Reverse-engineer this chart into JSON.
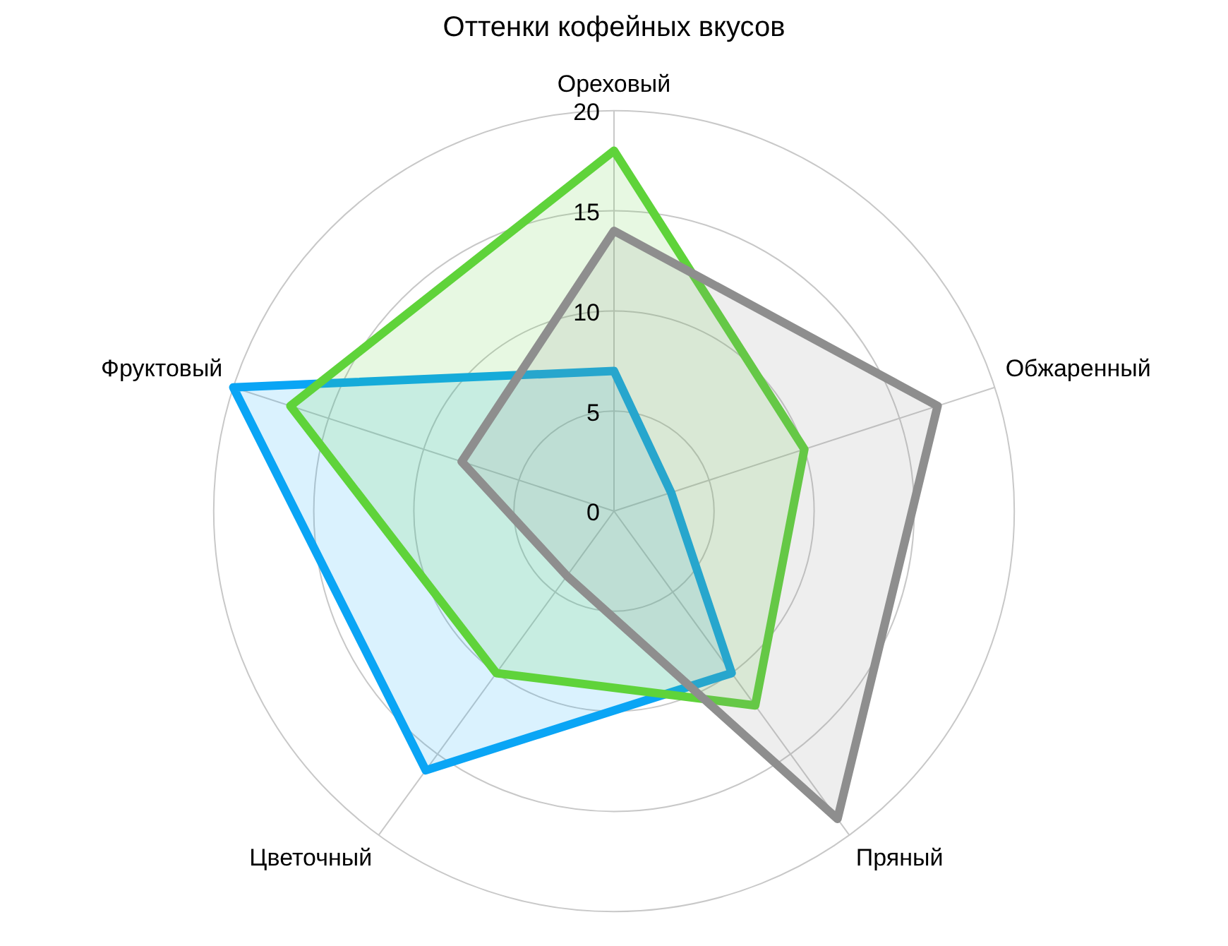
{
  "chart_data": {
    "type": "radar",
    "title": "Оттенки кофейных вкусов",
    "categories": [
      "Ореховый",
      "Обжаренный",
      "Пряный",
      "Цветочный",
      "Фруктовый"
    ],
    "series": [
      {
        "color": "#8e8e8e",
        "values": [
          14,
          17,
          19,
          4,
          8
        ]
      },
      {
        "color": "#5fd33a",
        "values": [
          18,
          10,
          12,
          10,
          17
        ]
      },
      {
        "color": "#0aa5f5",
        "values": [
          7,
          3,
          10,
          16,
          20
        ]
      }
    ],
    "ylim": [
      0,
      20
    ],
    "yticks": [
      0,
      5,
      10,
      15,
      20
    ],
    "grid": true,
    "legend": false,
    "marker": "none"
  }
}
